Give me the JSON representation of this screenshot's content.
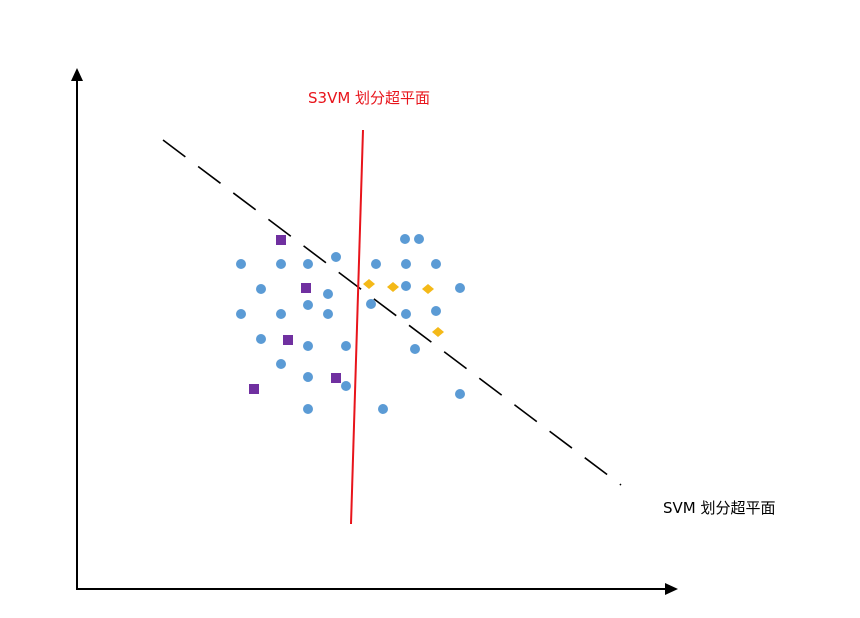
{
  "labels": {
    "s3vm": "S3VM 划分超平面",
    "svm": "SVM 划分超平面"
  },
  "colors": {
    "axis": "#000000",
    "svm_line": "#000000",
    "s3vm_line": "#e8141b",
    "s3vm_label": "#e8141b",
    "svm_label": "#000000",
    "unlabeled_point": "#5b9bd5",
    "class_a_square": "#7030a0",
    "class_b_diamond": "#f4b918"
  },
  "legend_semantics": {
    "unlabeled_point": "circle",
    "class_a_square": "square",
    "class_b_diamond": "diamond"
  }
}
